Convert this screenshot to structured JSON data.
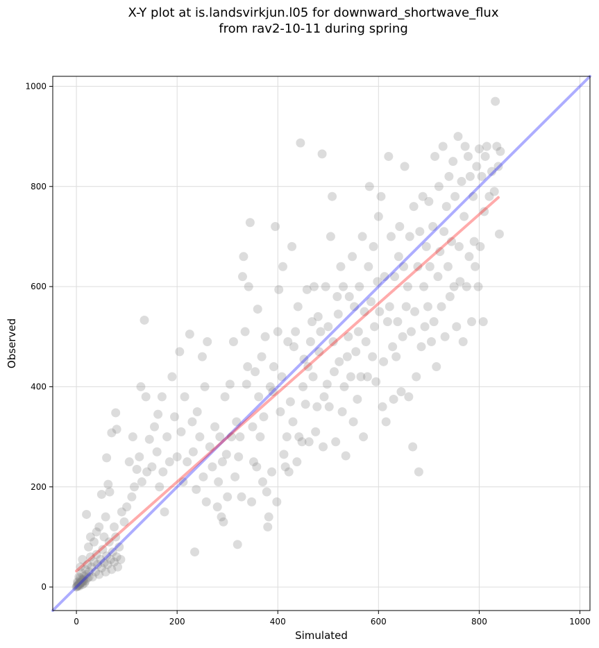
{
  "chart_data": {
    "type": "scatter",
    "title_line1": "X-Y plot at is.landsvirkjun.l05 for downward_shortwave_flux",
    "title_line2": "from rav2-10-11 during spring",
    "xlabel": "Simulated",
    "ylabel": "Observed",
    "xlim": [
      -47,
      1020
    ],
    "ylim": [
      -47,
      1020
    ],
    "xticks": [
      0,
      200,
      400,
      600,
      800,
      1000
    ],
    "yticks": [
      0,
      200,
      400,
      600,
      800,
      1000
    ],
    "xtick_labels": [
      "0",
      "200",
      "400",
      "600",
      "800",
      "1000"
    ],
    "ytick_labels": [
      "0",
      "200",
      "400",
      "600",
      "800",
      "1000"
    ],
    "grid": true,
    "point_color": "#808080",
    "points": [
      [
        0,
        0
      ],
      [
        1,
        1
      ],
      [
        2,
        3
      ],
      [
        3,
        2
      ],
      [
        4,
        5
      ],
      [
        5,
        4
      ],
      [
        6,
        7
      ],
      [
        7,
        6
      ],
      [
        8,
        9
      ],
      [
        9,
        8
      ],
      [
        10,
        12
      ],
      [
        11,
        10
      ],
      [
        12,
        14
      ],
      [
        13,
        11
      ],
      [
        14,
        16
      ],
      [
        15,
        13
      ],
      [
        3,
        8
      ],
      [
        6,
        2
      ],
      [
        9,
        15
      ],
      [
        12,
        5
      ],
      [
        2,
        10
      ],
      [
        7,
        18
      ],
      [
        15,
        22
      ],
      [
        18,
        12
      ],
      [
        20,
        25
      ],
      [
        22,
        18
      ],
      [
        5,
        20
      ],
      [
        10,
        28
      ],
      [
        16,
        8
      ],
      [
        25,
        20
      ],
      [
        8,
        40
      ],
      [
        12,
        55
      ],
      [
        18,
        35
      ],
      [
        22,
        45
      ],
      [
        25,
        30
      ],
      [
        28,
        60
      ],
      [
        30,
        40
      ],
      [
        32,
        20
      ],
      [
        35,
        50
      ],
      [
        38,
        30
      ],
      [
        40,
        65
      ],
      [
        42,
        45
      ],
      [
        45,
        25
      ],
      [
        48,
        55
      ],
      [
        50,
        38
      ],
      [
        52,
        75
      ],
      [
        55,
        48
      ],
      [
        58,
        30
      ],
      [
        60,
        62
      ],
      [
        62,
        45
      ],
      [
        65,
        90
      ],
      [
        68,
        55
      ],
      [
        70,
        35
      ],
      [
        72,
        70
      ],
      [
        75,
        50
      ],
      [
        78,
        100
      ],
      [
        80,
        60
      ],
      [
        82,
        40
      ],
      [
        85,
        80
      ],
      [
        88,
        55
      ],
      [
        20,
        145
      ],
      [
        24,
        80
      ],
      [
        28,
        100
      ],
      [
        35,
        90
      ],
      [
        40,
        110
      ],
      [
        45,
        120
      ],
      [
        50,
        185
      ],
      [
        55,
        100
      ],
      [
        58,
        140
      ],
      [
        60,
        258
      ],
      [
        63,
        205
      ],
      [
        66,
        190
      ],
      [
        70,
        308
      ],
      [
        75,
        120
      ],
      [
        80,
        315
      ],
      [
        78,
        348
      ],
      [
        90,
        150
      ],
      [
        95,
        130
      ],
      [
        100,
        160
      ],
      [
        105,
        250
      ],
      [
        110,
        180
      ],
      [
        112,
        300
      ],
      [
        115,
        200
      ],
      [
        120,
        235
      ],
      [
        125,
        260
      ],
      [
        128,
        400
      ],
      [
        130,
        210
      ],
      [
        135,
        533
      ],
      [
        138,
        380
      ],
      [
        140,
        230
      ],
      [
        145,
        295
      ],
      [
        150,
        240
      ],
      [
        155,
        320
      ],
      [
        160,
        270
      ],
      [
        162,
        345
      ],
      [
        165,
        200
      ],
      [
        170,
        380
      ],
      [
        172,
        230
      ],
      [
        175,
        150
      ],
      [
        180,
        300
      ],
      [
        185,
        250
      ],
      [
        190,
        420
      ],
      [
        195,
        340
      ],
      [
        200,
        260
      ],
      [
        205,
        470
      ],
      [
        208,
        310
      ],
      [
        212,
        210
      ],
      [
        215,
        380
      ],
      [
        220,
        250
      ],
      [
        225,
        505
      ],
      [
        230,
        330
      ],
      [
        232,
        270
      ],
      [
        235,
        70
      ],
      [
        238,
        195
      ],
      [
        240,
        350
      ],
      [
        245,
        300
      ],
      [
        250,
        460
      ],
      [
        252,
        220
      ],
      [
        255,
        400
      ],
      [
        258,
        170
      ],
      [
        260,
        490
      ],
      [
        265,
        280
      ],
      [
        270,
        240
      ],
      [
        275,
        320
      ],
      [
        280,
        160
      ],
      [
        282,
        210
      ],
      [
        285,
        300
      ],
      [
        288,
        140
      ],
      [
        290,
        250
      ],
      [
        292,
        130
      ],
      [
        295,
        380
      ],
      [
        298,
        265
      ],
      [
        300,
        180
      ],
      [
        305,
        405
      ],
      [
        308,
        300
      ],
      [
        312,
        490
      ],
      [
        315,
        220
      ],
      [
        318,
        330
      ],
      [
        320,
        85
      ],
      [
        322,
        260
      ],
      [
        325,
        300
      ],
      [
        328,
        180
      ],
      [
        330,
        620
      ],
      [
        332,
        660
      ],
      [
        335,
        510
      ],
      [
        338,
        405
      ],
      [
        340,
        440
      ],
      [
        342,
        600
      ],
      [
        345,
        728
      ],
      [
        348,
        170
      ],
      [
        350,
        320
      ],
      [
        352,
        250
      ],
      [
        355,
        430
      ],
      [
        358,
        240
      ],
      [
        360,
        555
      ],
      [
        362,
        380
      ],
      [
        365,
        300
      ],
      [
        368,
        460
      ],
      [
        370,
        210
      ],
      [
        372,
        340
      ],
      [
        375,
        500
      ],
      [
        378,
        190
      ],
      [
        380,
        120
      ],
      [
        382,
        140
      ],
      [
        385,
        400
      ],
      [
        388,
        230
      ],
      [
        390,
        390
      ],
      [
        392,
        440
      ],
      [
        395,
        720
      ],
      [
        398,
        170
      ],
      [
        400,
        510
      ],
      [
        402,
        594
      ],
      [
        405,
        350
      ],
      [
        408,
        420
      ],
      [
        410,
        640
      ],
      [
        412,
        265
      ],
      [
        415,
        240
      ],
      [
        418,
        300
      ],
      [
        420,
        490
      ],
      [
        422,
        230
      ],
      [
        425,
        370
      ],
      [
        428,
        680
      ],
      [
        430,
        330
      ],
      [
        432,
        480
      ],
      [
        435,
        510
      ],
      [
        438,
        250
      ],
      [
        440,
        560
      ],
      [
        442,
        300
      ],
      [
        445,
        887
      ],
      [
        448,
        290
      ],
      [
        450,
        400
      ],
      [
        452,
        455
      ],
      [
        455,
        365
      ],
      [
        458,
        594
      ],
      [
        460,
        440
      ],
      [
        462,
        290
      ],
      [
        465,
        490
      ],
      [
        468,
        530
      ],
      [
        470,
        420
      ],
      [
        472,
        600
      ],
      [
        475,
        310
      ],
      [
        478,
        360
      ],
      [
        480,
        540
      ],
      [
        482,
        470
      ],
      [
        485,
        510
      ],
      [
        488,
        865
      ],
      [
        490,
        280
      ],
      [
        492,
        380
      ],
      [
        495,
        600
      ],
      [
        498,
        405
      ],
      [
        500,
        520
      ],
      [
        502,
        360
      ],
      [
        505,
        700
      ],
      [
        508,
        780
      ],
      [
        510,
        490
      ],
      [
        512,
        430
      ],
      [
        515,
        290
      ],
      [
        518,
        580
      ],
      [
        520,
        545
      ],
      [
        522,
        450
      ],
      [
        525,
        640
      ],
      [
        528,
        350
      ],
      [
        530,
        600
      ],
      [
        532,
        400
      ],
      [
        535,
        262
      ],
      [
        538,
        460
      ],
      [
        540,
        500
      ],
      [
        542,
        580
      ],
      [
        545,
        420
      ],
      [
        548,
        660
      ],
      [
        550,
        330
      ],
      [
        552,
        560
      ],
      [
        555,
        470
      ],
      [
        558,
        375
      ],
      [
        560,
        510
      ],
      [
        562,
        600
      ],
      [
        565,
        420
      ],
      [
        568,
        700
      ],
      [
        570,
        300
      ],
      [
        572,
        550
      ],
      [
        575,
        490
      ],
      [
        578,
        420
      ],
      [
        580,
        640
      ],
      [
        582,
        800
      ],
      [
        585,
        570
      ],
      [
        588,
        460
      ],
      [
        590,
        680
      ],
      [
        592,
        520
      ],
      [
        595,
        410
      ],
      [
        598,
        610
      ],
      [
        600,
        740
      ],
      [
        602,
        550
      ],
      [
        605,
        780
      ],
      [
        608,
        360
      ],
      [
        610,
        450
      ],
      [
        612,
        620
      ],
      [
        615,
        330
      ],
      [
        618,
        530
      ],
      [
        620,
        860
      ],
      [
        622,
        560
      ],
      [
        625,
        700
      ],
      [
        628,
        480
      ],
      [
        630,
        375
      ],
      [
        632,
        620
      ],
      [
        635,
        460
      ],
      [
        638,
        530
      ],
      [
        640,
        660
      ],
      [
        642,
        720
      ],
      [
        645,
        390
      ],
      [
        648,
        500
      ],
      [
        650,
        640
      ],
      [
        652,
        840
      ],
      [
        655,
        560
      ],
      [
        658,
        600
      ],
      [
        660,
        380
      ],
      [
        662,
        700
      ],
      [
        665,
        510
      ],
      [
        668,
        280
      ],
      [
        670,
        760
      ],
      [
        672,
        550
      ],
      [
        675,
        420
      ],
      [
        678,
        640
      ],
      [
        680,
        230
      ],
      [
        682,
        710
      ],
      [
        685,
        480
      ],
      [
        688,
        780
      ],
      [
        690,
        600
      ],
      [
        692,
        520
      ],
      [
        695,
        680
      ],
      [
        698,
        560
      ],
      [
        700,
        770
      ],
      [
        702,
        640
      ],
      [
        705,
        490
      ],
      [
        708,
        720
      ],
      [
        710,
        530
      ],
      [
        712,
        860
      ],
      [
        715,
        440
      ],
      [
        718,
        620
      ],
      [
        720,
        800
      ],
      [
        722,
        670
      ],
      [
        725,
        560
      ],
      [
        728,
        880
      ],
      [
        730,
        710
      ],
      [
        732,
        500
      ],
      [
        735,
        760
      ],
      [
        738,
        640
      ],
      [
        740,
        820
      ],
      [
        742,
        580
      ],
      [
        745,
        690
      ],
      [
        748,
        850
      ],
      [
        750,
        600
      ],
      [
        752,
        780
      ],
      [
        755,
        520
      ],
      [
        758,
        900
      ],
      [
        760,
        680
      ],
      [
        762,
        610
      ],
      [
        765,
        810
      ],
      [
        768,
        490
      ],
      [
        770,
        740
      ],
      [
        772,
        880
      ],
      [
        775,
        600
      ],
      [
        778,
        860
      ],
      [
        780,
        660
      ],
      [
        782,
        820
      ],
      [
        785,
        530
      ],
      [
        788,
        780
      ],
      [
        790,
        690
      ],
      [
        792,
        640
      ],
      [
        795,
        840
      ],
      [
        798,
        600
      ],
      [
        800,
        875
      ],
      [
        802,
        680
      ],
      [
        805,
        820
      ],
      [
        808,
        530
      ],
      [
        810,
        750
      ],
      [
        812,
        860
      ],
      [
        815,
        880
      ],
      [
        820,
        780
      ],
      [
        825,
        830
      ],
      [
        830,
        790
      ],
      [
        832,
        970
      ],
      [
        835,
        880
      ],
      [
        838,
        840
      ],
      [
        840,
        705
      ],
      [
        842,
        870
      ]
    ],
    "one_to_one_line": {
      "color": "#0000ff",
      "x": [
        -47,
        1020
      ],
      "y": [
        -47,
        1020
      ]
    },
    "fit_line": {
      "color": "#ff0000",
      "x": [
        0,
        838
      ],
      "y": [
        32,
        778
      ]
    }
  }
}
